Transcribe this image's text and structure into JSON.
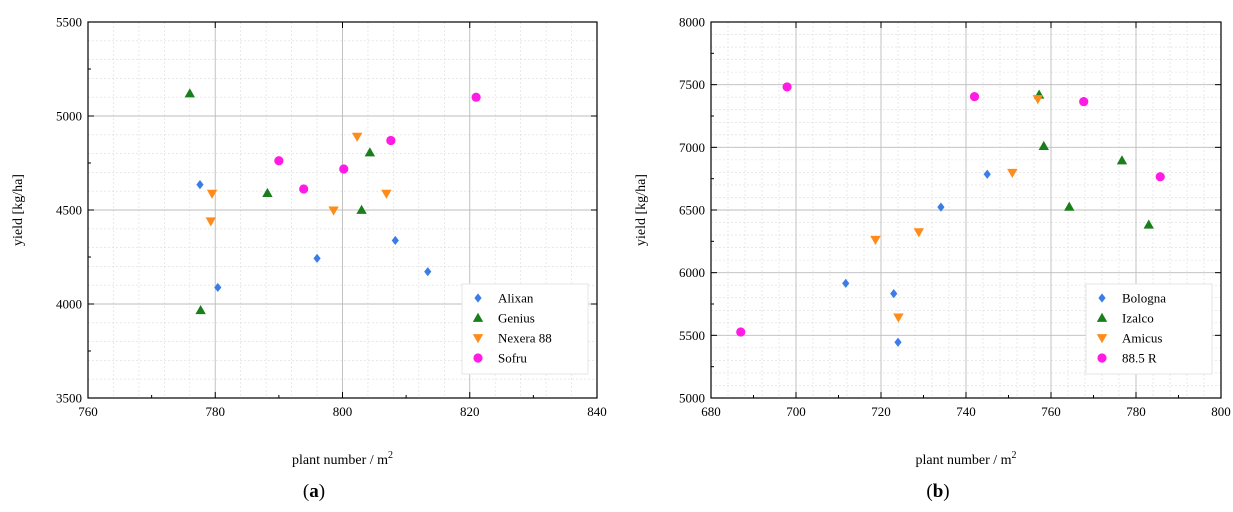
{
  "chart_data": [
    {
      "type": "scatter",
      "panel_label": "a",
      "xlabel": "plant number / m",
      "xlabel_sup": "2",
      "ylabel": "yield [kg/ha]",
      "xlim": [
        760,
        840
      ],
      "ylim": [
        3500,
        5500
      ],
      "xticks": [
        760,
        780,
        800,
        820,
        840
      ],
      "yticks": [
        3500,
        4000,
        4500,
        5000,
        5500
      ],
      "grid": true,
      "legend_position": "bottom-right",
      "series": [
        {
          "name": "Alixan",
          "marker": "diamond",
          "color": "#3B7DE6",
          "points": [
            [
              777.6,
              4635
            ],
            [
              780.4,
              4088
            ],
            [
              796.0,
              4243
            ],
            [
              808.3,
              4338
            ],
            [
              813.4,
              4172
            ]
          ]
        },
        {
          "name": "Genius",
          "marker": "triangle-up",
          "color": "#1A7F1A",
          "points": [
            [
              776.0,
              5120
            ],
            [
              777.7,
              3967
            ],
            [
              788.2,
              4590
            ],
            [
              803.0,
              4500
            ],
            [
              804.3,
              4806
            ]
          ]
        },
        {
          "name": "Nexera 88",
          "marker": "triangle-down",
          "color": "#FF8C1A",
          "points": [
            [
              779.5,
              4587
            ],
            [
              779.3,
              4440
            ],
            [
              798.6,
              4498
            ],
            [
              802.3,
              4890
            ],
            [
              806.9,
              4587
            ]
          ]
        },
        {
          "name": "Sofru",
          "marker": "circle",
          "color": "#FF1AE6",
          "points": [
            [
              790.0,
              4762
            ],
            [
              793.9,
              4612
            ],
            [
              800.2,
              4718
            ],
            [
              807.6,
              4870
            ],
            [
              821.0,
              5100
            ]
          ]
        }
      ]
    },
    {
      "type": "scatter",
      "panel_label": "b",
      "xlabel": "plant number / m",
      "xlabel_sup": "2",
      "ylabel": "yield [kg/ha]",
      "xlim": [
        680,
        800
      ],
      "ylim": [
        5000,
        8000
      ],
      "xticks": [
        680,
        700,
        720,
        740,
        760,
        780,
        800
      ],
      "yticks": [
        5000,
        5500,
        6000,
        6500,
        7000,
        7500,
        8000
      ],
      "grid": true,
      "legend_position": "bottom-right",
      "series": [
        {
          "name": "Bologna",
          "marker": "diamond",
          "color": "#3B7DE6",
          "points": [
            [
              711.7,
              5915
            ],
            [
              723.0,
              5833
            ],
            [
              724.0,
              5445
            ],
            [
              734.1,
              6523
            ],
            [
              745.0,
              6785
            ]
          ]
        },
        {
          "name": "Izalco",
          "marker": "triangle-up",
          "color": "#1A7F1A",
          "points": [
            [
              757.2,
              7420
            ],
            [
              758.3,
              7010
            ],
            [
              764.3,
              6525
            ],
            [
              776.7,
              6895
            ],
            [
              783.0,
              6383
            ]
          ]
        },
        {
          "name": "Amicus",
          "marker": "triangle-down",
          "color": "#FF8C1A",
          "points": [
            [
              718.7,
              6262
            ],
            [
              724.1,
              5643
            ],
            [
              728.9,
              6323
            ],
            [
              750.9,
              6797
            ],
            [
              756.9,
              7385
            ]
          ]
        },
        {
          "name": "88.5 R",
          "marker": "circle",
          "color": "#FF1AE6",
          "points": [
            [
              687.0,
              5527
            ],
            [
              697.9,
              7482
            ],
            [
              742.0,
              7405
            ],
            [
              767.7,
              7365
            ],
            [
              785.7,
              6765
            ]
          ]
        }
      ]
    }
  ]
}
